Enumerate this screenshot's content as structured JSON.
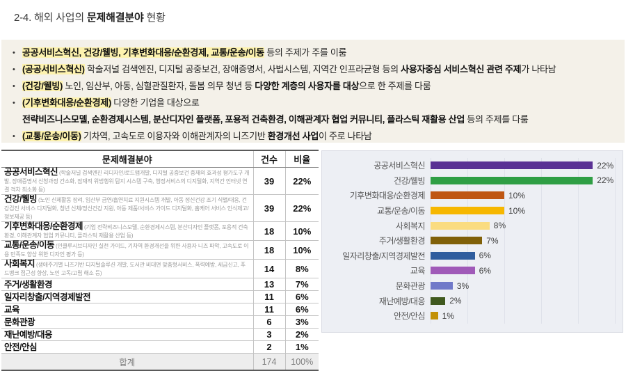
{
  "title": {
    "prefix": "2-4. 해외 사업의 ",
    "bold": "문제해결분야",
    "suffix": " 현황"
  },
  "summary": {
    "highlight_color": "#fdf2ae",
    "background_color": "#f4f1e9",
    "lines": [
      {
        "indent": false,
        "segments": [
          {
            "text": "공공서비스혁신, 건강/웰빙, 기후변화대응/순환경제, 교통/운송/이동",
            "style": "hl"
          },
          {
            "text": " 등의 주제가 주를 이룸",
            "style": "plain"
          }
        ]
      },
      {
        "indent": false,
        "segments": [
          {
            "text": "(공공서비스혁신)",
            "style": "hl"
          },
          {
            "text": " 학술저널 검색엔진, 디지털 공중보건, 장애증명서, 사법시스템, 지역간 인프라균형 등의 ",
            "style": "plain"
          },
          {
            "text": "사용자중심 서비스혁신 관련 주제",
            "style": "b"
          },
          {
            "text": "가 나타남",
            "style": "plain"
          }
        ]
      },
      {
        "indent": false,
        "segments": [
          {
            "text": "(건강/웰빙)",
            "style": "hl"
          },
          {
            "text": " 노인, 임산부, 아동, 심혈관질환자, 돌봄 의무 청년 등 ",
            "style": "plain"
          },
          {
            "text": "다양한 계층의 사용자를 대상",
            "style": "b"
          },
          {
            "text": "으로 한 주제를 다룸",
            "style": "plain"
          }
        ]
      },
      {
        "indent": false,
        "segments": [
          {
            "text": "(기후변화대응/순환경제)",
            "style": "hl"
          },
          {
            "text": " 다양한 기업을 대상으로",
            "style": "plain"
          }
        ]
      },
      {
        "indent": true,
        "segments": [
          {
            "text": "전략비즈니스모델, 순환경제시스템, 분산디자인 플랫폼, 포용적 건축환경, 이해관계자 협업 커뮤니티, 플라스틱 재활용 산업",
            "style": "b"
          },
          {
            "text": " 등의 주제를 다룸",
            "style": "plain"
          }
        ]
      },
      {
        "indent": false,
        "segments": [
          {
            "text": "(교통/운송/이동)",
            "style": "hl"
          },
          {
            "text": " 기차역, 고속도로 이용자와 이해관계자의 니즈기반 ",
            "style": "plain"
          },
          {
            "text": "환경개선 사업",
            "style": "b"
          },
          {
            "text": "이 주로 나타남",
            "style": "plain"
          }
        ]
      }
    ]
  },
  "table": {
    "headers": [
      "문제해결분야",
      "건수",
      "비율"
    ],
    "rows": [
      {
        "name": "공공서비스혁신",
        "desc": "(학술저널 검색엔진 리디자인/로드맵개발, 디지털 공중보건 중재의 효과성 평가도구 개발, 장애증명서 신청과정 간소화, 잠재적 위법행위 탐지 시스템 구축, 행정서비스의 디지털화, 지역간 인터넷 연결 격차 최소화 등)",
        "count": "39",
        "pct": "22%"
      },
      {
        "name": "건강/웰빙",
        "desc": "(노인 신체활동 장려, 임산부 금연/흡연치료 지원시스템 개발, 아동 정신건강 조기 식별/대응, 건강검진 서비스 디지털화, 청년 신체/정신건강 지원, 아동 제품/서비스 가이드 디지털화, 홈케어 서비스 인식제고/정보제공 등)",
        "count": "39",
        "pct": "22%"
      },
      {
        "name": "기후변화대응/순환경제",
        "desc": "(기업 전략비즈니스모델, 순환경제시스템, 분산디자인 플랫폼, 포용적 건축환경, 이해관계자 협업 커뮤니티, 플라스틱 재활용 산업 등)",
        "count": "18",
        "pct": "10%"
      },
      {
        "name": "교통/운송/이동",
        "desc": "(인클루시브디자인 실천 가이드, 기차역 환경개선을 위한 사용자 니즈 파악, 고속도로 이용 만족도 향상 위한 디자인 평가 등)",
        "count": "18",
        "pct": "10%"
      },
      {
        "name": "사회복지",
        "desc": "(생애주기별 니즈기반 디지털솔루션 개발, 도서관 비대면 맞춤형서비스, 폭력예방, 세금신고, 푸드뱅크 접근성 향상, 노인 고독/고립 해소 등)",
        "count": "14",
        "pct": "8%"
      },
      {
        "name": "주거/생활환경",
        "desc": "",
        "count": "13",
        "pct": "7%"
      },
      {
        "name": "일자리창출/지역경제발전",
        "desc": "",
        "count": "11",
        "pct": "6%"
      },
      {
        "name": "교육",
        "desc": "",
        "count": "11",
        "pct": "6%"
      },
      {
        "name": "문화관광",
        "desc": "",
        "count": "6",
        "pct": "3%"
      },
      {
        "name": "재난예방/대응",
        "desc": "",
        "count": "3",
        "pct": "2%"
      },
      {
        "name": "안전/안심",
        "desc": "",
        "count": "2",
        "pct": "1%"
      }
    ],
    "footer": {
      "name": "합계",
      "count": "174",
      "pct": "100%"
    }
  },
  "chart_data": {
    "type": "bar",
    "orientation": "horizontal",
    "title": "",
    "xlabel": "",
    "ylabel": "",
    "categories": [
      "공공서비스혁신",
      "건강/웰빙",
      "기후변화대응/순환경제",
      "교통/운송/이동",
      "사회복지",
      "주거/생활환경",
      "일자리창출/지역경제발전",
      "교육",
      "문화관광",
      "재난예방/대응",
      "안전/안심"
    ],
    "values": [
      22,
      22,
      10,
      10,
      8,
      7,
      6,
      6,
      3,
      2,
      1
    ],
    "value_labels": [
      "22%",
      "22%",
      "10%",
      "10%",
      "8%",
      "7%",
      "6%",
      "6%",
      "3%",
      "2%",
      "1%"
    ],
    "unit": "%",
    "colors": [
      "#5a3194",
      "#2f9e44",
      "#bf5714",
      "#f6b700",
      "#fadc80",
      "#806008",
      "#2f5d9e",
      "#a05ab8",
      "#7079c9",
      "#40591f",
      "#c39106"
    ],
    "xlim": [
      0,
      25
    ],
    "gridline_step": 5,
    "grid": true,
    "legend": false,
    "background": "#edeff4"
  }
}
